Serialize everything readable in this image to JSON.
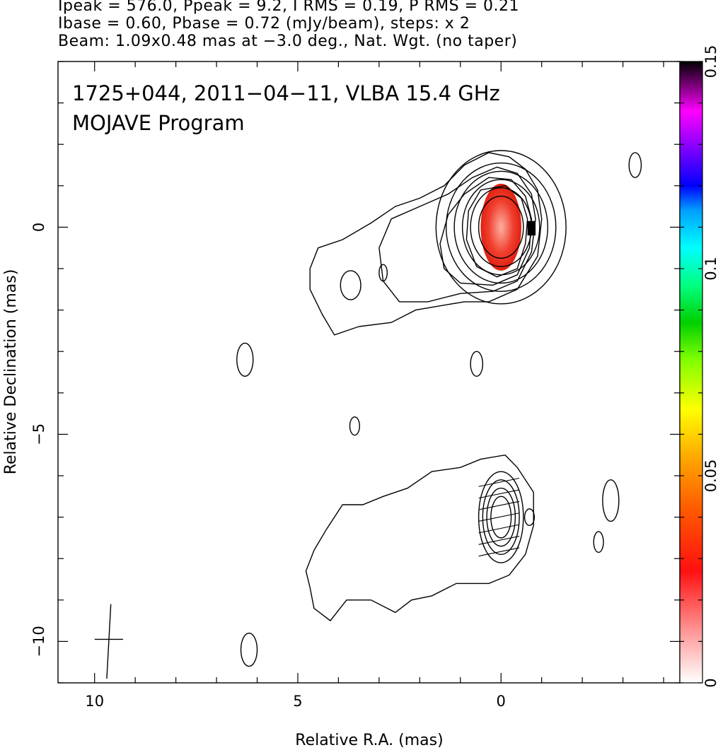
{
  "header": {
    "line1": "Ipeak = 576.0, Ppeak = 9.2, I RMS = 0.19, P RMS = 0.21",
    "line2": "Ibase = 0.60, Pbase = 0.72 (mJy/beam), steps: x 2",
    "line3": "Beam: 1.09x0.48 mas at −3.0 deg., Nat. Wgt. (no taper)"
  },
  "chart_data": {
    "type": "heatmap",
    "annotations": [
      "1725+044, 2011−04−11, VLBA 15.4 GHz",
      "MOJAVE Program"
    ],
    "xlabel": "Relative R.A. (mas)",
    "ylabel": "Relative Declination (mas)",
    "xlim": [
      10.9,
      -4.4
    ],
    "ylim": [
      -11.0,
      4.0
    ],
    "x_ticks": [
      {
        "value": 10,
        "label": "10"
      },
      {
        "value": 5,
        "label": "5"
      },
      {
        "value": 0,
        "label": "0"
      }
    ],
    "y_ticks": [
      {
        "value": 0,
        "label": "0"
      },
      {
        "value": -5,
        "label": "−5"
      },
      {
        "value": -10,
        "label": "−10"
      }
    ],
    "colorbar": {
      "range": [
        0,
        0.15
      ],
      "ticks": [
        {
          "value": 0,
          "label": "0"
        },
        {
          "value": 0.05,
          "label": "0.05"
        },
        {
          "value": 0.1,
          "label": "0.1"
        },
        {
          "value": 0.15,
          "label": "0.15"
        }
      ]
    },
    "core_contours": {
      "center": [
        0.0,
        0.0
      ],
      "radii": [
        [
          0.55,
          0.75
        ],
        [
          0.75,
          0.95
        ],
        [
          0.95,
          1.15
        ],
        [
          1.15,
          1.35
        ],
        [
          1.35,
          1.55
        ],
        [
          1.6,
          1.85
        ]
      ]
    },
    "jet_contours": [
      [
        [
          -1.0,
          0.2
        ],
        [
          -0.9,
          0.9
        ],
        [
          -0.6,
          1.4
        ],
        [
          -0.2,
          1.7
        ],
        [
          0.3,
          1.8
        ],
        [
          0.9,
          1.5
        ],
        [
          1.4,
          1.0
        ],
        [
          2.0,
          0.7
        ],
        [
          2.6,
          0.5
        ],
        [
          3.2,
          0.1
        ],
        [
          3.9,
          -0.3
        ],
        [
          4.5,
          -0.5
        ],
        [
          4.7,
          -1.0
        ],
        [
          4.7,
          -1.5
        ],
        [
          4.4,
          -2.1
        ],
        [
          4.1,
          -2.6
        ],
        [
          3.5,
          -2.4
        ],
        [
          2.7,
          -2.3
        ],
        [
          2.1,
          -2.0
        ],
        [
          1.5,
          -1.9
        ],
        [
          0.9,
          -1.8
        ],
        [
          0.3,
          -1.8
        ],
        [
          -0.4,
          -1.5
        ],
        [
          -0.9,
          -0.7
        ]
      ],
      [
        [
          -0.85,
          0.2
        ],
        [
          -0.75,
          0.8
        ],
        [
          -0.4,
          1.3
        ],
        [
          0.1,
          1.45
        ],
        [
          0.7,
          1.2
        ],
        [
          1.3,
          0.8
        ],
        [
          2.0,
          0.5
        ],
        [
          2.7,
          0.2
        ],
        [
          3.0,
          -0.5
        ],
        [
          2.9,
          -1.3
        ],
        [
          2.5,
          -1.8
        ],
        [
          1.8,
          -1.8
        ],
        [
          1.0,
          -1.6
        ],
        [
          0.2,
          -1.55
        ],
        [
          -0.4,
          -1.3
        ],
        [
          -0.75,
          -0.6
        ]
      ],
      [
        [
          -0.75,
          0.2
        ],
        [
          -0.6,
          0.75
        ],
        [
          -0.25,
          1.15
        ],
        [
          0.3,
          1.2
        ],
        [
          0.9,
          0.8
        ],
        [
          1.3,
          0.3
        ],
        [
          1.5,
          -0.4
        ],
        [
          1.4,
          -1.0
        ],
        [
          1.0,
          -1.35
        ],
        [
          0.2,
          -1.4
        ],
        [
          -0.4,
          -1.15
        ],
        [
          -0.7,
          -0.5
        ]
      ],
      [
        [
          -0.65,
          0.2
        ],
        [
          -0.5,
          0.7
        ],
        [
          -0.1,
          1.0
        ],
        [
          0.5,
          0.9
        ],
        [
          0.8,
          0.4
        ],
        [
          0.85,
          -0.3
        ],
        [
          0.6,
          -0.95
        ],
        [
          0.1,
          -1.2
        ],
        [
          -0.4,
          -1.0
        ],
        [
          -0.6,
          -0.4
        ]
      ]
    ],
    "lower_contour": [
      [
        -0.8,
        -6.4
      ],
      [
        -0.4,
        -5.8
      ],
      [
        -0.1,
        -5.5
      ],
      [
        0.5,
        -5.6
      ],
      [
        1.0,
        -5.8
      ],
      [
        1.7,
        -5.9
      ],
      [
        2.3,
        -6.3
      ],
      [
        2.9,
        -6.5
      ],
      [
        3.4,
        -6.7
      ],
      [
        3.9,
        -6.7
      ],
      [
        4.3,
        -7.3
      ],
      [
        4.6,
        -7.8
      ],
      [
        4.8,
        -8.3
      ],
      [
        4.7,
        -8.7
      ],
      [
        4.6,
        -9.2
      ],
      [
        4.2,
        -9.5
      ],
      [
        3.8,
        -9.0
      ],
      [
        3.2,
        -9.0
      ],
      [
        2.6,
        -9.3
      ],
      [
        2.2,
        -9.0
      ],
      [
        1.7,
        -8.9
      ],
      [
        1.1,
        -8.6
      ],
      [
        0.3,
        -8.6
      ],
      [
        -0.2,
        -8.4
      ],
      [
        -0.6,
        -7.9
      ],
      [
        -0.8,
        -7.2
      ]
    ],
    "lower_core_radii": [
      [
        0.25,
        0.5
      ],
      [
        0.35,
        0.7
      ],
      [
        0.45,
        0.9
      ],
      [
        0.55,
        1.1
      ]
    ],
    "islands": [
      [
        3.7,
        -1.4,
        0.25,
        0.35
      ],
      [
        2.9,
        -1.1,
        0.1,
        0.2
      ],
      [
        6.3,
        -3.2,
        0.2,
        0.4
      ],
      [
        0.6,
        -3.3,
        0.15,
        0.3
      ],
      [
        3.6,
        -4.8,
        0.12,
        0.22
      ],
      [
        -2.7,
        -6.6,
        0.2,
        0.5
      ],
      [
        -2.4,
        -7.6,
        0.12,
        0.25
      ],
      [
        -3.3,
        1.5,
        0.15,
        0.3
      ],
      [
        6.2,
        -10.2,
        0.2,
        0.4
      ],
      [
        -0.7,
        -7.0,
        0.12,
        0.2
      ]
    ],
    "pol_image": {
      "description_values": {
        "peak": 0.15
      }
    }
  }
}
